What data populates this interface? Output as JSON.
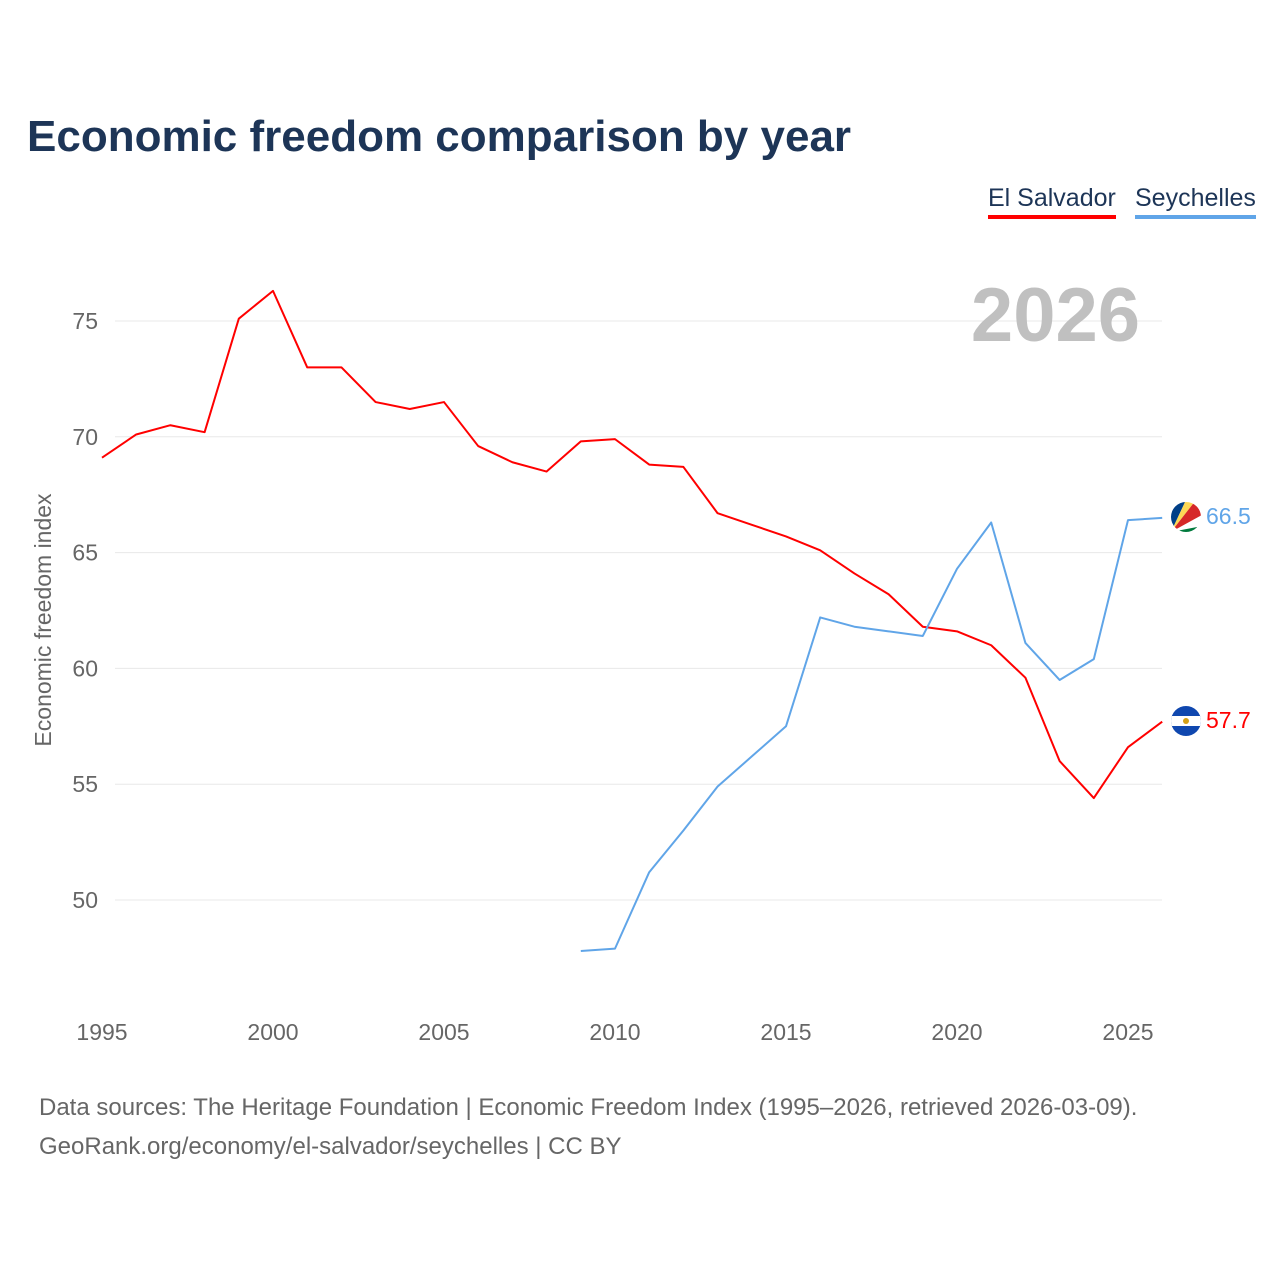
{
  "title": "Economic freedom comparison by year",
  "footer": {
    "line1": "Data sources: The Heritage Foundation | Economic Freedom Index (1995–2026, retrieved 2026-03-09).",
    "line2": "GeoRank.org/economy/el-salvador/seychelles | CC BY"
  },
  "chart_data": {
    "type": "line",
    "title": "Economic freedom comparison by year",
    "ylabel": "Economic freedom index",
    "xlabel": "",
    "year_label": "2026",
    "xlim": [
      1995,
      2026
    ],
    "ylim": [
      45,
      78
    ],
    "xticks": [
      "1995",
      "2000",
      "2005",
      "2010",
      "2015",
      "2020",
      "2025"
    ],
    "yticks": [
      "50",
      "55",
      "60",
      "65",
      "70",
      "75"
    ],
    "grid": true,
    "legend_position": "top-right",
    "series": [
      {
        "name": "El Salvador",
        "color": "#ff0000",
        "end_label": "57.7",
        "flag": "el-salvador-flag-icon",
        "x": [
          1995,
          1996,
          1997,
          1998,
          1999,
          2000,
          2001,
          2002,
          2003,
          2004,
          2005,
          2006,
          2007,
          2008,
          2009,
          2010,
          2011,
          2012,
          2013,
          2014,
          2015,
          2016,
          2017,
          2018,
          2019,
          2020,
          2021,
          2022,
          2023,
          2024,
          2025,
          2026
        ],
        "values": [
          69.1,
          70.1,
          70.5,
          70.2,
          75.1,
          76.3,
          73.0,
          73.0,
          71.5,
          71.2,
          71.5,
          69.6,
          68.9,
          68.5,
          69.8,
          69.9,
          68.8,
          68.7,
          66.7,
          66.2,
          65.7,
          65.1,
          64.1,
          63.2,
          61.8,
          61.6,
          61.0,
          59.6,
          56.0,
          54.4,
          56.6,
          57.7
        ]
      },
      {
        "name": "Seychelles",
        "color": "#60a5e8",
        "end_label": "66.5",
        "flag": "seychelles-flag-icon",
        "x": [
          2009,
          2010,
          2011,
          2012,
          2013,
          2014,
          2015,
          2016,
          2017,
          2018,
          2019,
          2020,
          2021,
          2022,
          2023,
          2024,
          2025,
          2026
        ],
        "values": [
          47.8,
          47.9,
          51.2,
          53.0,
          54.9,
          56.2,
          57.5,
          62.2,
          61.8,
          61.6,
          61.4,
          64.3,
          66.3,
          61.1,
          59.5,
          60.4,
          66.4,
          66.5
        ]
      }
    ]
  }
}
